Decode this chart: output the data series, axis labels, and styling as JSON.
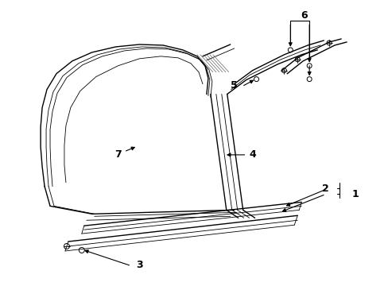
{
  "background_color": "#ffffff",
  "line_color": "#000000",
  "fig_width": 4.89,
  "fig_height": 3.6,
  "dpi": 100,
  "lw_main": 1.0,
  "lw_thin": 0.6,
  "lw_med": 0.8
}
